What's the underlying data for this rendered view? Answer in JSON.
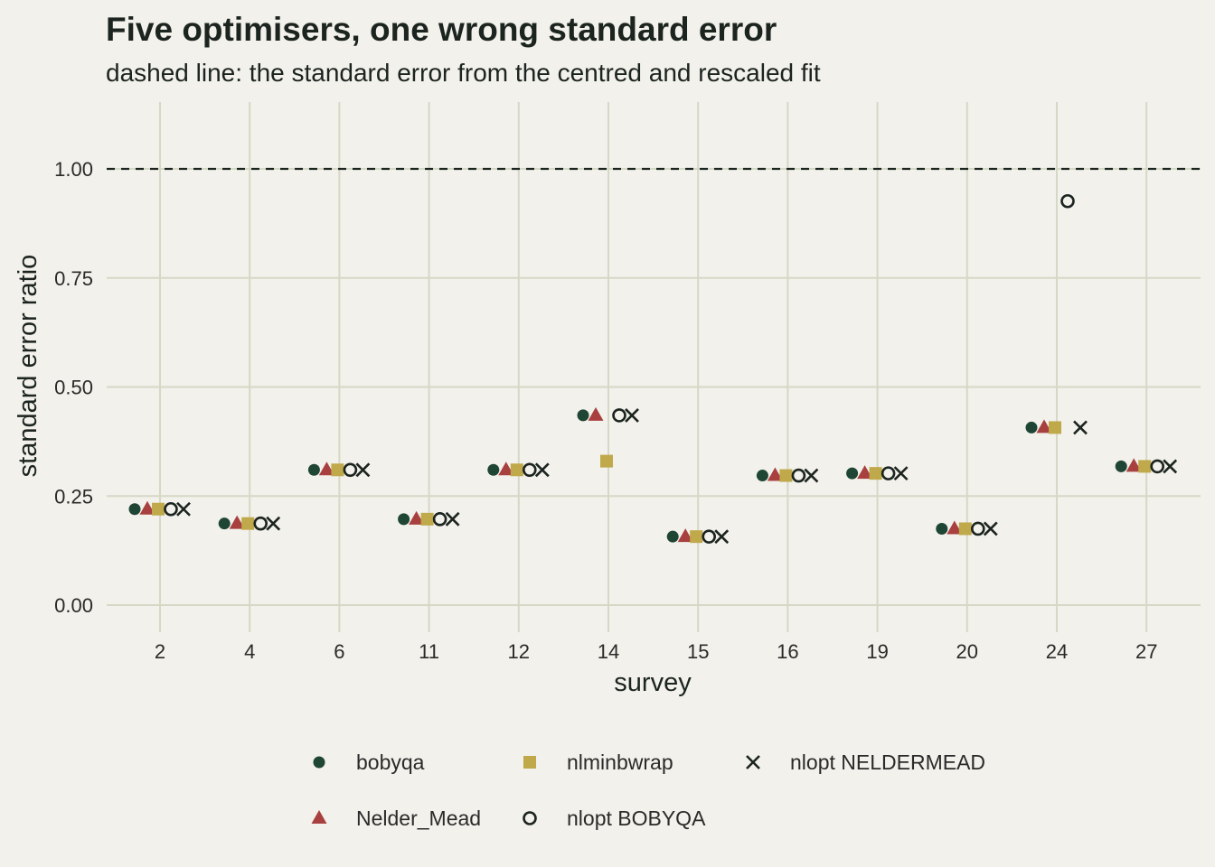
{
  "chart_data": {
    "type": "scatter",
    "title": "Five optimisers, one wrong standard error",
    "subtitle": "dashed line: the standard error from the centred and rescaled fit",
    "xlabel": "survey",
    "ylabel": "standard error ratio",
    "categories": [
      "2",
      "4",
      "6",
      "11",
      "12",
      "14",
      "15",
      "16",
      "19",
      "20",
      "24",
      "27"
    ],
    "ylim": [
      -0.04,
      1.15
    ],
    "yticks": [
      0.0,
      0.25,
      0.5,
      0.75,
      1.0
    ],
    "ytick_labels": [
      "0.00",
      "0.25",
      "0.50",
      "0.75",
      "1.00"
    ],
    "reference_line": {
      "y": 1.0,
      "style": "dashed"
    },
    "grid": true,
    "legend_position": "bottom",
    "series": [
      {
        "name": "bobyqa",
        "shape": "circle",
        "color": "#1f4535",
        "values": [
          0.22,
          0.187,
          0.31,
          0.197,
          0.31,
          0.435,
          0.157,
          0.297,
          0.302,
          0.175,
          0.407,
          0.318
        ]
      },
      {
        "name": "Nelder_Mead",
        "shape": "triangle",
        "color": "#a84040",
        "values": [
          0.22,
          0.187,
          0.31,
          0.197,
          0.31,
          0.435,
          0.157,
          0.297,
          0.302,
          0.175,
          0.407,
          0.318
        ]
      },
      {
        "name": "nlminbwrap",
        "shape": "square",
        "color": "#bfa94a",
        "values": [
          0.22,
          0.187,
          0.31,
          0.197,
          0.31,
          0.33,
          0.157,
          0.297,
          0.302,
          0.175,
          0.407,
          0.318
        ]
      },
      {
        "name": "nlopt BOBYQA",
        "shape": "open-circle",
        "color": "#1c2420",
        "values": [
          0.22,
          0.187,
          0.31,
          0.197,
          0.31,
          0.435,
          0.157,
          0.297,
          0.302,
          0.175,
          0.926,
          0.318
        ]
      },
      {
        "name": "nlopt NELDERMEAD",
        "shape": "cross",
        "color": "#1c2420",
        "values": [
          0.22,
          0.187,
          0.31,
          0.197,
          0.31,
          0.435,
          0.157,
          0.297,
          0.302,
          0.175,
          0.407,
          0.318
        ]
      }
    ],
    "legend_order": [
      "bobyqa",
      "nlminbwrap",
      "nlopt NELDERMEAD",
      "Nelder_Mead",
      "nlopt BOBYQA"
    ]
  }
}
